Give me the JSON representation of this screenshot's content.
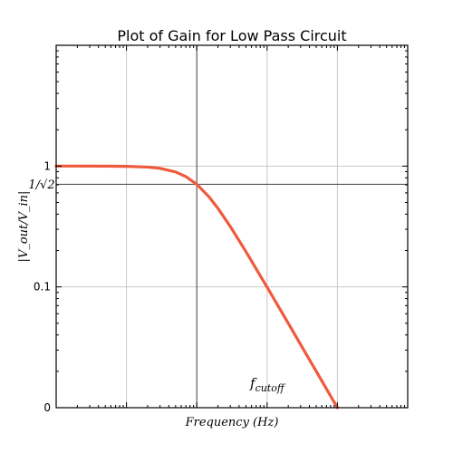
{
  "chart_data": {
    "type": "line",
    "title": "Plot of Gain for Low Pass Circuit",
    "xlabel": "Frequency (Hz)",
    "ylabel": "|V_out/V_in|",
    "x_scale": "log",
    "y_scale": "log",
    "xlim": [
      0.01,
      1000
    ],
    "ylim": [
      0.01,
      10
    ],
    "y_ticks": [
      {
        "value": 1,
        "label": "1"
      },
      {
        "value": 0.1,
        "label": "0.1"
      },
      {
        "value": 0.01,
        "label": "0"
      }
    ],
    "grid": true,
    "cutoff": {
      "frequency": 1,
      "gain": 0.7071,
      "label_main": "f",
      "label_sub": "cutoff",
      "gain_label": "1/√2"
    },
    "series": [
      {
        "color": "#f05a3c",
        "x": [
          0.01,
          0.02,
          0.05,
          0.1,
          0.2,
          0.3,
          0.5,
          0.7,
          1,
          1.5,
          2,
          3,
          5,
          7,
          10,
          20,
          30,
          50,
          70,
          100
        ],
        "y": [
          1.0,
          1.0,
          0.999,
          0.995,
          0.981,
          0.958,
          0.894,
          0.819,
          0.707,
          0.555,
          0.447,
          0.316,
          0.196,
          0.141,
          0.0995,
          0.05,
          0.0333,
          0.02,
          0.0143,
          0.01
        ]
      }
    ]
  }
}
